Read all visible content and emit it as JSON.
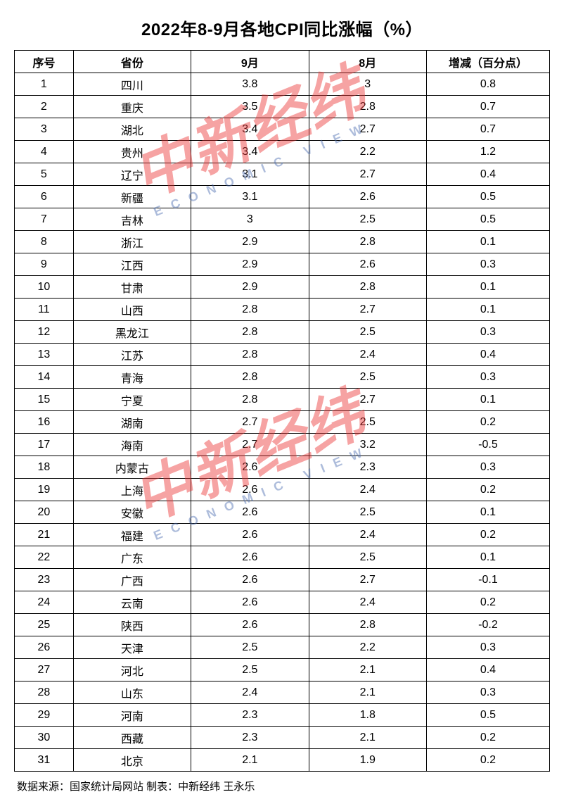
{
  "title": "2022年8-9月各地CPI同比涨幅（%）",
  "columns": [
    "序号",
    "省份",
    "9月",
    "8月",
    "增减（百分点）"
  ],
  "rows": [
    [
      "1",
      "四川",
      "3.8",
      "3",
      "0.8"
    ],
    [
      "2",
      "重庆",
      "3.5",
      "2.8",
      "0.7"
    ],
    [
      "3",
      "湖北",
      "3.4",
      "2.7",
      "0.7"
    ],
    [
      "4",
      "贵州",
      "3.4",
      "2.2",
      "1.2"
    ],
    [
      "5",
      "辽宁",
      "3.1",
      "2.7",
      "0.4"
    ],
    [
      "6",
      "新疆",
      "3.1",
      "2.6",
      "0.5"
    ],
    [
      "7",
      "吉林",
      "3",
      "2.5",
      "0.5"
    ],
    [
      "8",
      "浙江",
      "2.9",
      "2.8",
      "0.1"
    ],
    [
      "9",
      "江西",
      "2.9",
      "2.6",
      "0.3"
    ],
    [
      "10",
      "甘肃",
      "2.9",
      "2.8",
      "0.1"
    ],
    [
      "11",
      "山西",
      "2.8",
      "2.7",
      "0.1"
    ],
    [
      "12",
      "黑龙江",
      "2.8",
      "2.5",
      "0.3"
    ],
    [
      "13",
      "江苏",
      "2.8",
      "2.4",
      "0.4"
    ],
    [
      "14",
      "青海",
      "2.8",
      "2.5",
      "0.3"
    ],
    [
      "15",
      "宁夏",
      "2.8",
      "2.7",
      "0.1"
    ],
    [
      "16",
      "湖南",
      "2.7",
      "2.5",
      "0.2"
    ],
    [
      "17",
      "海南",
      "2.7",
      "3.2",
      "-0.5"
    ],
    [
      "18",
      "内蒙古",
      "2.6",
      "2.3",
      "0.3"
    ],
    [
      "19",
      "上海",
      "2.6",
      "2.4",
      "0.2"
    ],
    [
      "20",
      "安徽",
      "2.6",
      "2.5",
      "0.1"
    ],
    [
      "21",
      "福建",
      "2.6",
      "2.4",
      "0.2"
    ],
    [
      "22",
      "广东",
      "2.6",
      "2.5",
      "0.1"
    ],
    [
      "23",
      "广西",
      "2.6",
      "2.7",
      "-0.1"
    ],
    [
      "24",
      "云南",
      "2.6",
      "2.4",
      "0.2"
    ],
    [
      "25",
      "陕西",
      "2.6",
      "2.8",
      "-0.2"
    ],
    [
      "26",
      "天津",
      "2.5",
      "2.2",
      "0.3"
    ],
    [
      "27",
      "河北",
      "2.5",
      "2.1",
      "0.4"
    ],
    [
      "28",
      "山东",
      "2.4",
      "2.1",
      "0.3"
    ],
    [
      "29",
      "河南",
      "2.3",
      "1.8",
      "0.5"
    ],
    [
      "30",
      "西藏",
      "2.3",
      "2.1",
      "0.2"
    ],
    [
      "31",
      "北京",
      "2.1",
      "1.9",
      "0.2"
    ]
  ],
  "source": "数据来源：国家统计局网站 制表：中新经纬 王永乐",
  "watermark": {
    "cn": "中新经纬",
    "en": "ECONOMIC VIEW",
    "cn_color": "#ec3434",
    "en_color": "#4b6db0"
  },
  "styles": {
    "background_color": "#ffffff",
    "border_color": "#000000",
    "text_color": "#000000",
    "title_fontsize": 24,
    "cell_fontsize": 16,
    "source_fontsize": 15
  }
}
